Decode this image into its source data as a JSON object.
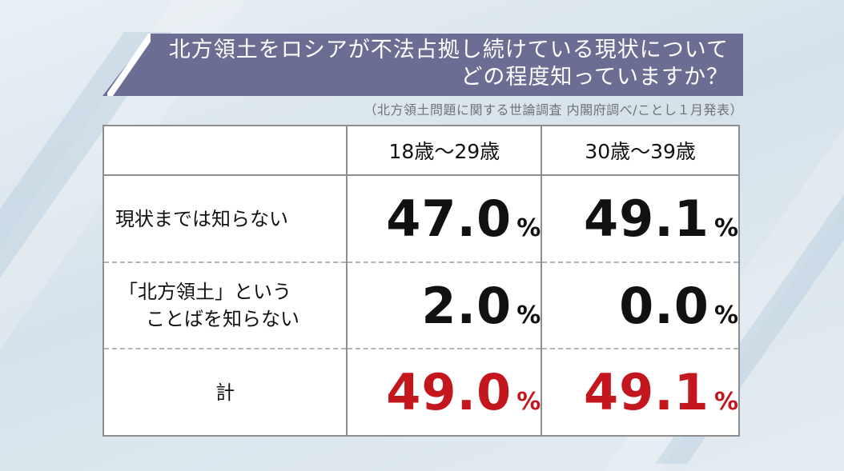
{
  "title": {
    "line1": "北方領土をロシアが不法占拠し続けている現状について",
    "line2": "どの程度知っていますか？"
  },
  "source": "（北方領土問題に関する世論調査 内閣府調べ/ことし１月発表）",
  "colors": {
    "banner": "#6b6d92",
    "total_value": "#c3161d"
  },
  "chart_data": {
    "type": "table",
    "columns": [
      "18歳～29歳",
      "30歳～39歳"
    ],
    "rows": [
      {
        "label": [
          "現状までは知らない"
        ],
        "values": [
          "47.0",
          "49.1"
        ],
        "unit": "%"
      },
      {
        "label": [
          "「北方領土」という",
          "ことばを知らない"
        ],
        "values": [
          "2.0",
          "0.0"
        ],
        "unit": "%"
      },
      {
        "label": [
          "計"
        ],
        "values": [
          "49.0",
          "49.1"
        ],
        "unit": "%"
      }
    ]
  }
}
